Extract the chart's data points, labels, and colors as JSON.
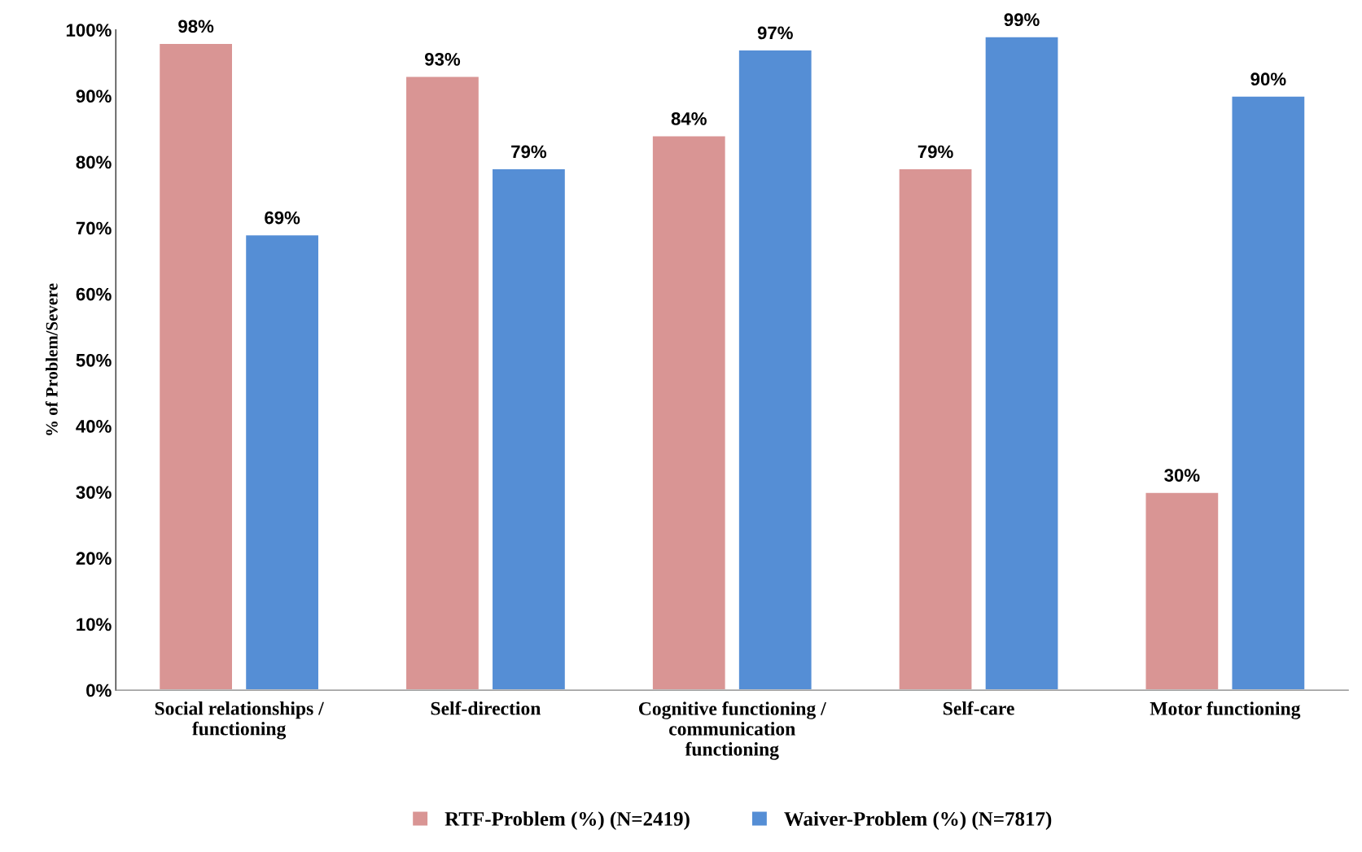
{
  "chart_data": {
    "type": "bar",
    "ylabel": "% of Problem/Severe",
    "categories": [
      "Social relationships /\nfunctioning",
      "Self-direction",
      "Cognitive functioning /\ncommunication\nfunctioning",
      "Self-care",
      "Motor functioning"
    ],
    "series": [
      {
        "name": "RTF-Problem (%) (N=2419)",
        "color": "#d99594",
        "values": [
          98,
          93,
          84,
          79,
          30
        ],
        "value_labels": [
          "98%",
          "93%",
          "84%",
          "79%",
          "30%"
        ]
      },
      {
        "name": "Waiver-Problem (%) (N=7817)",
        "color": "#558ed5",
        "values": [
          69,
          79,
          97,
          99,
          90
        ],
        "value_labels": [
          "69%",
          "79%",
          "97%",
          "99%",
          "90%"
        ]
      }
    ],
    "ylim": [
      0,
      100
    ],
    "yticks": [
      {
        "value": 0,
        "label": "0%"
      },
      {
        "value": 10,
        "label": "10%"
      },
      {
        "value": 20,
        "label": "20%"
      },
      {
        "value": 30,
        "label": "30%"
      },
      {
        "value": 40,
        "label": "40%"
      },
      {
        "value": 50,
        "label": "50%"
      },
      {
        "value": 60,
        "label": "60%"
      },
      {
        "value": 70,
        "label": "70%"
      },
      {
        "value": 80,
        "label": "80%"
      },
      {
        "value": 90,
        "label": "90%"
      },
      {
        "value": 100,
        "label": "100%"
      }
    ],
    "legend": "bottom",
    "grid": false
  }
}
